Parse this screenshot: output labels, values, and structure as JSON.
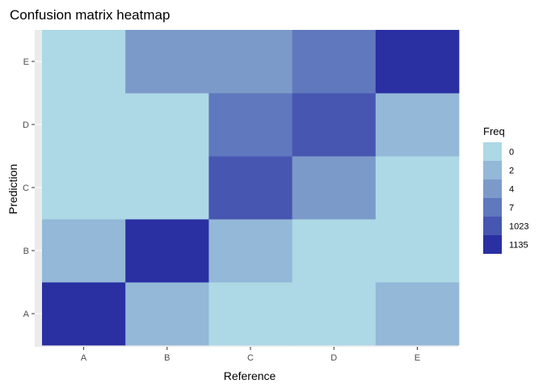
{
  "chart_data": {
    "type": "heatmap",
    "title": "Confusion matrix heatmap",
    "xlabel": "Reference",
    "ylabel": "Prediction",
    "x_categories": [
      "A",
      "B",
      "C",
      "D",
      "E"
    ],
    "y_categories": [
      "A",
      "B",
      "C",
      "D",
      "E"
    ],
    "cells": [
      {
        "prediction": "A",
        "reference": "A",
        "freq": 1135
      },
      {
        "prediction": "A",
        "reference": "B",
        "freq": 2
      },
      {
        "prediction": "A",
        "reference": "C",
        "freq": 0
      },
      {
        "prediction": "A",
        "reference": "D",
        "freq": 0
      },
      {
        "prediction": "A",
        "reference": "E",
        "freq": 2
      },
      {
        "prediction": "B",
        "reference": "A",
        "freq": 2
      },
      {
        "prediction": "B",
        "reference": "B",
        "freq": 1135
      },
      {
        "prediction": "B",
        "reference": "C",
        "freq": 2
      },
      {
        "prediction": "B",
        "reference": "D",
        "freq": 0
      },
      {
        "prediction": "B",
        "reference": "E",
        "freq": 0
      },
      {
        "prediction": "C",
        "reference": "A",
        "freq": 0
      },
      {
        "prediction": "C",
        "reference": "B",
        "freq": 0
      },
      {
        "prediction": "C",
        "reference": "C",
        "freq": 1023
      },
      {
        "prediction": "C",
        "reference": "D",
        "freq": 4
      },
      {
        "prediction": "C",
        "reference": "E",
        "freq": 0
      },
      {
        "prediction": "D",
        "reference": "A",
        "freq": 0
      },
      {
        "prediction": "D",
        "reference": "B",
        "freq": 0
      },
      {
        "prediction": "D",
        "reference": "C",
        "freq": 7
      },
      {
        "prediction": "D",
        "reference": "D",
        "freq": 1023
      },
      {
        "prediction": "D",
        "reference": "E",
        "freq": 2
      },
      {
        "prediction": "E",
        "reference": "A",
        "freq": 0
      },
      {
        "prediction": "E",
        "reference": "B",
        "freq": 4
      },
      {
        "prediction": "E",
        "reference": "C",
        "freq": 4
      },
      {
        "prediction": "E",
        "reference": "D",
        "freq": 7
      },
      {
        "prediction": "E",
        "reference": "E",
        "freq": 1135
      }
    ],
    "legend": {
      "title": "Freq",
      "position": "right",
      "entries": [
        {
          "label": "0",
          "color": "#add8e6"
        },
        {
          "label": "2",
          "color": "#94b8d8"
        },
        {
          "label": "4",
          "color": "#7b9aca"
        },
        {
          "label": "7",
          "color": "#5f78be"
        },
        {
          "label": "1023",
          "color": "#4756b0"
        },
        {
          "label": "1135",
          "color": "#2a2fa2"
        }
      ]
    },
    "colors": {
      "low": "#add8e6",
      "high": "#2a2fa2",
      "panel_background": "#ebebeb",
      "grid": "#ffffff"
    },
    "grid": true
  }
}
